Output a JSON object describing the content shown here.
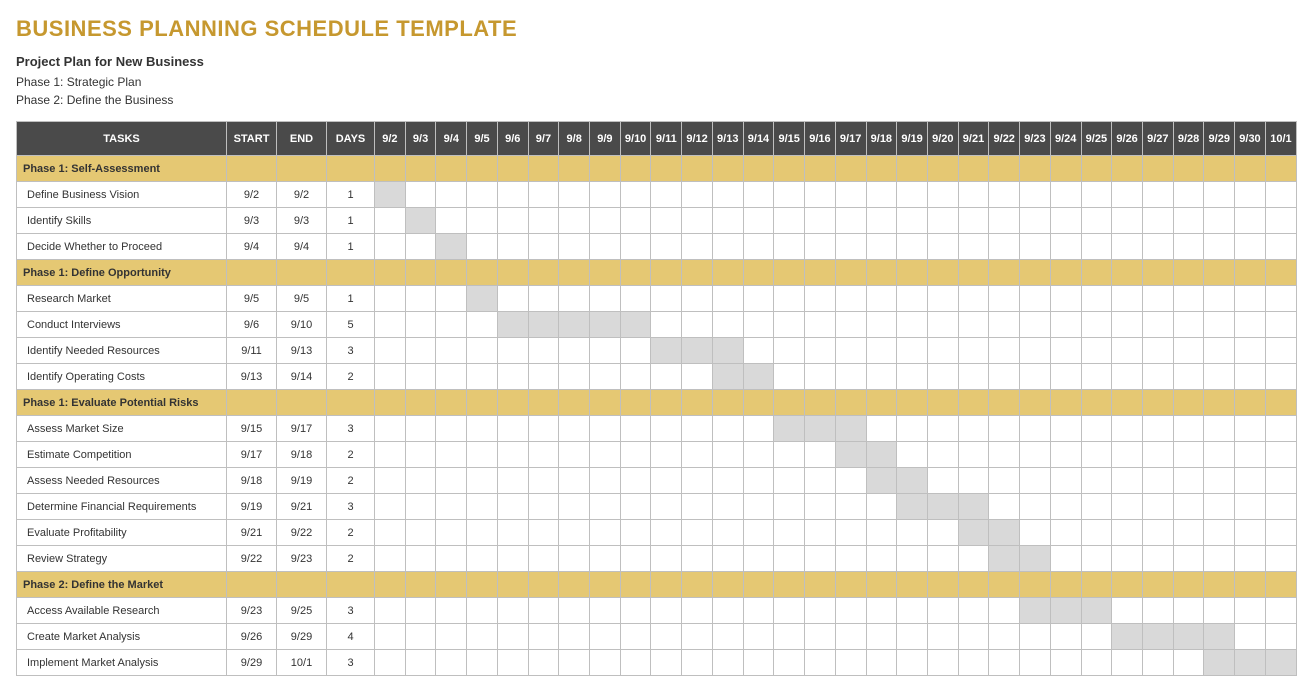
{
  "title": "BUSINESS PLANNING SCHEDULE TEMPLATE",
  "subtitle": "Project Plan for New Business",
  "intro_lines": [
    "Phase 1: Strategic Plan",
    "Phase 2: Define the Business"
  ],
  "columns": {
    "tasks": "TASKS",
    "start": "START",
    "end": "END",
    "days": "DAYS"
  },
  "date_headers": [
    "9/2",
    "9/3",
    "9/4",
    "9/5",
    "9/6",
    "9/7",
    "9/8",
    "9/9",
    "9/10",
    "9/11",
    "9/12",
    "9/13",
    "9/14",
    "9/15",
    "9/16",
    "9/17",
    "9/18",
    "9/19",
    "9/20",
    "9/21",
    "9/22",
    "9/23",
    "9/24",
    "9/25",
    "9/26",
    "9/27",
    "9/28",
    "9/29",
    "9/30",
    "10/1"
  ],
  "rows": [
    {
      "type": "phase",
      "label": "Phase 1: Self-Assessment"
    },
    {
      "type": "task",
      "label": "Define Business Vision",
      "start": "9/2",
      "end": "9/2",
      "days": "1",
      "bar_start": 0,
      "bar_end": 0
    },
    {
      "type": "task",
      "label": "Identify Skills",
      "start": "9/3",
      "end": "9/3",
      "days": "1",
      "bar_start": 1,
      "bar_end": 1
    },
    {
      "type": "task",
      "label": "Decide Whether to Proceed",
      "start": "9/4",
      "end": "9/4",
      "days": "1",
      "bar_start": 2,
      "bar_end": 2
    },
    {
      "type": "phase",
      "label": "Phase 1: Define Opportunity"
    },
    {
      "type": "task",
      "label": "Research Market",
      "start": "9/5",
      "end": "9/5",
      "days": "1",
      "bar_start": 3,
      "bar_end": 3
    },
    {
      "type": "task",
      "label": "Conduct Interviews",
      "start": "9/6",
      "end": "9/10",
      "days": "5",
      "bar_start": 4,
      "bar_end": 8
    },
    {
      "type": "task",
      "label": "Identify Needed Resources",
      "start": "9/11",
      "end": "9/13",
      "days": "3",
      "bar_start": 9,
      "bar_end": 11
    },
    {
      "type": "task",
      "label": "Identify Operating Costs",
      "start": "9/13",
      "end": "9/14",
      "days": "2",
      "bar_start": 11,
      "bar_end": 12
    },
    {
      "type": "phase",
      "label": "Phase 1: Evaluate Potential Risks"
    },
    {
      "type": "task",
      "label": "Assess Market Size",
      "start": "9/15",
      "end": "9/17",
      "days": "3",
      "bar_start": 13,
      "bar_end": 15
    },
    {
      "type": "task",
      "label": "Estimate Competition",
      "start": "9/17",
      "end": "9/18",
      "days": "2",
      "bar_start": 15,
      "bar_end": 16
    },
    {
      "type": "task",
      "label": "Assess Needed Resources",
      "start": "9/18",
      "end": "9/19",
      "days": "2",
      "bar_start": 16,
      "bar_end": 17
    },
    {
      "type": "task",
      "label": "Determine Financial Requirements",
      "start": "9/19",
      "end": "9/21",
      "days": "3",
      "bar_start": 17,
      "bar_end": 19
    },
    {
      "type": "task",
      "label": "Evaluate Profitability",
      "start": "9/21",
      "end": "9/22",
      "days": "2",
      "bar_start": 19,
      "bar_end": 20
    },
    {
      "type": "task",
      "label": "Review Strategy",
      "start": "9/22",
      "end": "9/23",
      "days": "2",
      "bar_start": 20,
      "bar_end": 21
    },
    {
      "type": "phase",
      "label": "Phase 2: Define the Market"
    },
    {
      "type": "task",
      "label": "Access Available Research",
      "start": "9/23",
      "end": "9/25",
      "days": "3",
      "bar_start": 21,
      "bar_end": 23
    },
    {
      "type": "task",
      "label": "Create Market Analysis",
      "start": "9/26",
      "end": "9/29",
      "days": "4",
      "bar_start": 24,
      "bar_end": 27
    },
    {
      "type": "task",
      "label": "Implement Market Analysis",
      "start": "9/29",
      "end": "10/1",
      "days": "3",
      "bar_start": 27,
      "bar_end": 29
    }
  ],
  "colors": {
    "title": "#c6982f",
    "header_bg": "#4a4a4a",
    "header_text": "#ffffff",
    "phase_bg": "#e5c873",
    "bar_fill": "#d9d9d9",
    "border": "#bfbfbf",
    "background": "#ffffff"
  },
  "typography": {
    "title_fontsize_pt": 18,
    "body_fontsize_pt": 9,
    "header_fontsize_pt": 9,
    "font_family": "Century Gothic"
  },
  "chart_type": "gantt"
}
